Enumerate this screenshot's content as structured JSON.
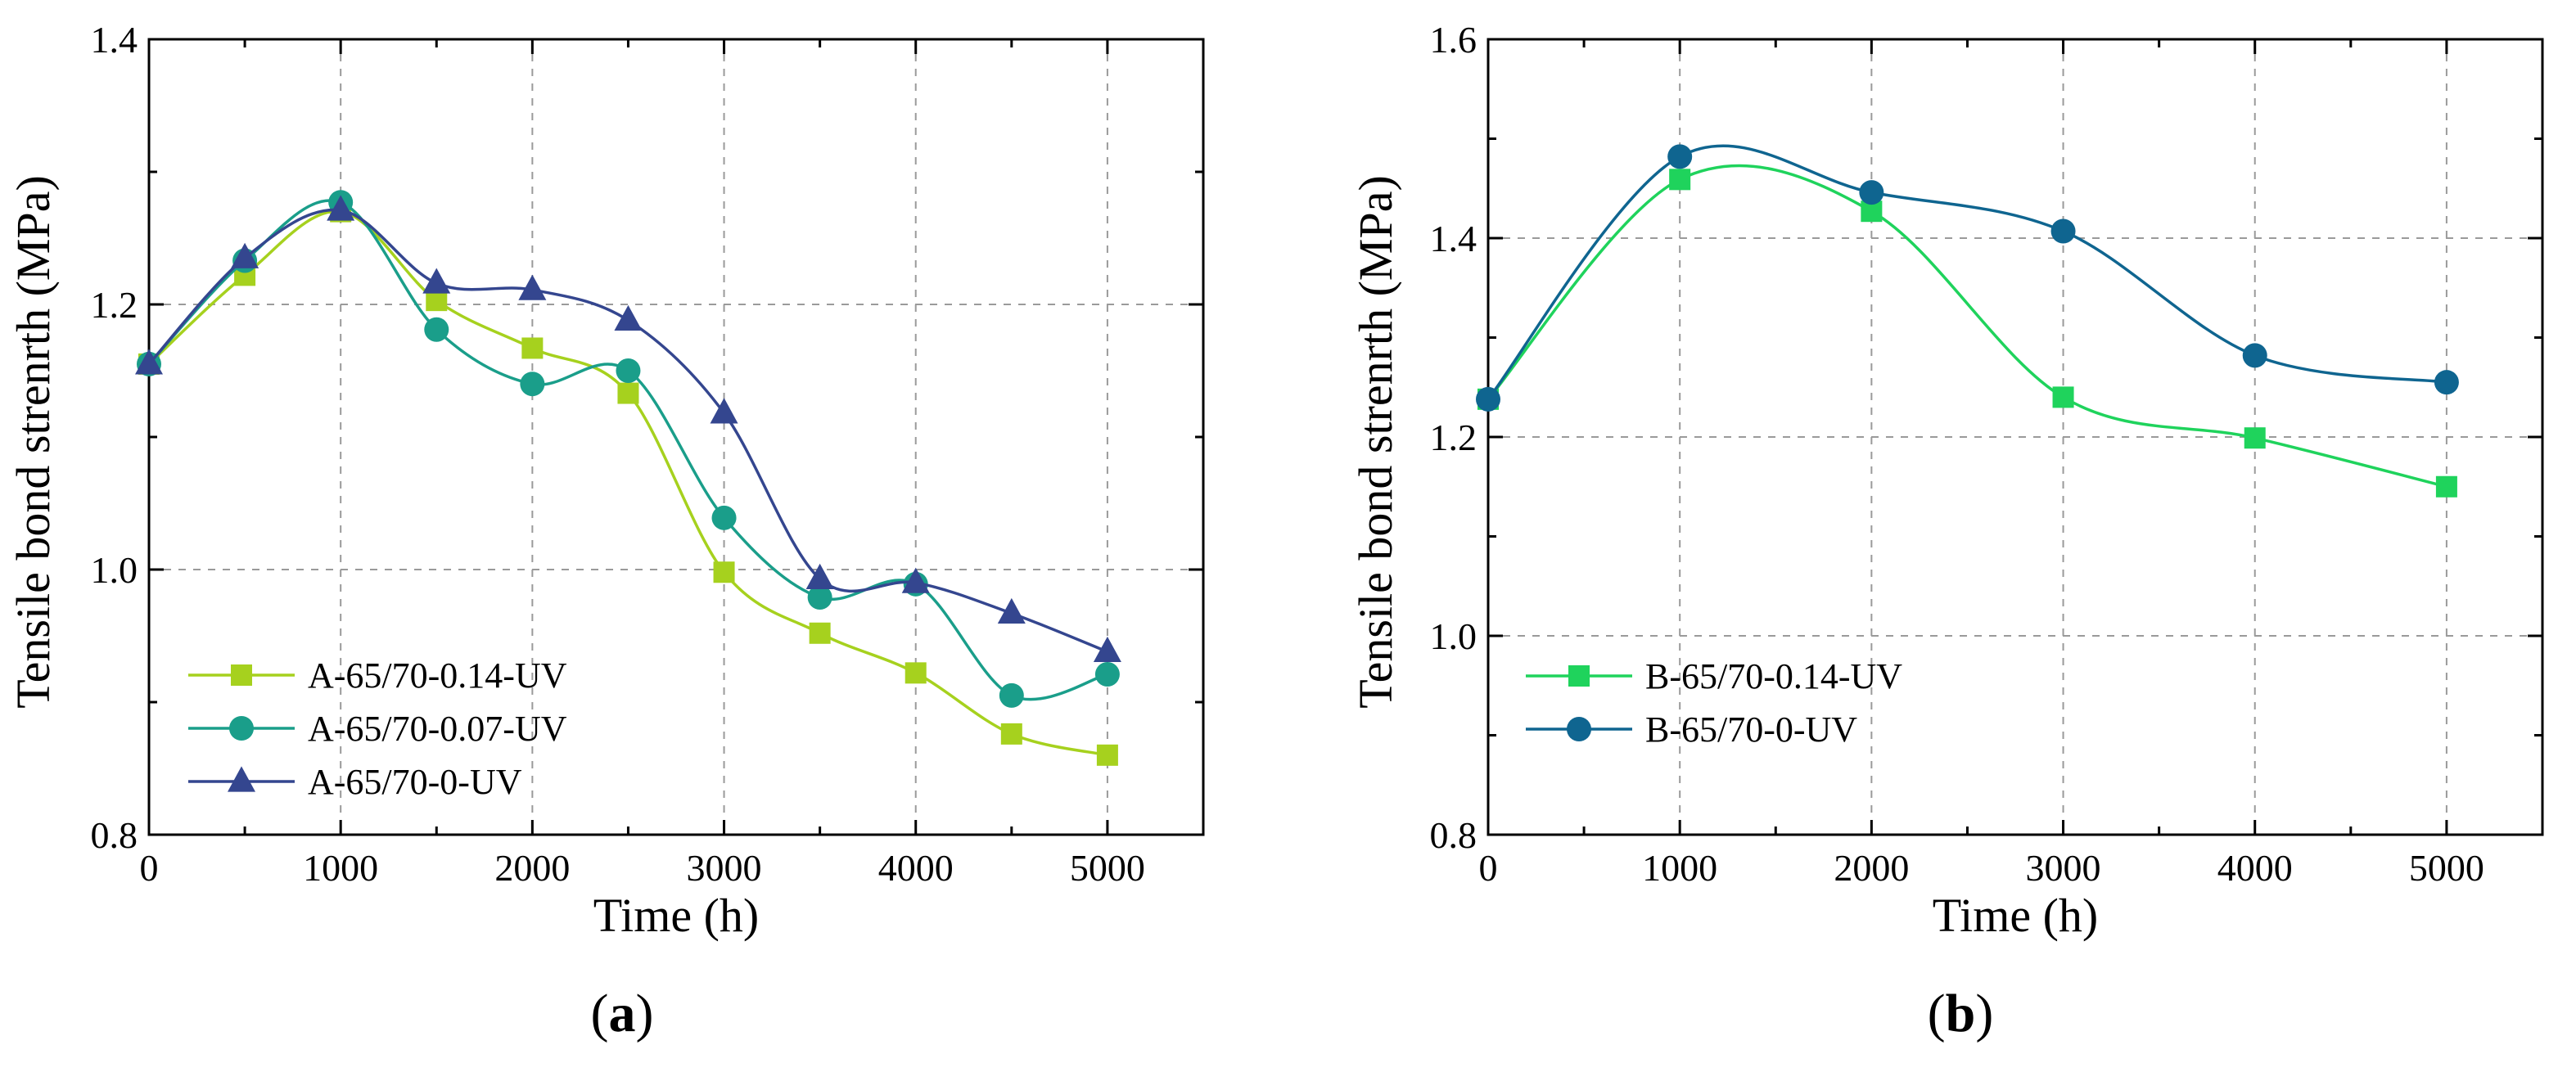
{
  "chart_data": [
    {
      "panel": "a",
      "panel_label": "a",
      "type": "line",
      "title": "",
      "xlabel": "Time (h)",
      "ylabel": "Tensile bond strenrth (MPa)",
      "xlim": [
        0,
        5500
      ],
      "ylim": [
        0.8,
        1.4
      ],
      "x_ticks": [
        0,
        1000,
        2000,
        3000,
        4000,
        5000
      ],
      "x_tick_labels": [
        "0",
        "1000",
        "2000",
        "3000",
        "4000",
        "5000"
      ],
      "y_ticks": [
        0.8,
        1.0,
        1.2,
        1.4
      ],
      "y_tick_labels": [
        "0.8",
        "1.0",
        "1.2",
        "1.4"
      ],
      "grid": true,
      "legend_position": "bottom-left",
      "series": [
        {
          "name": "A-65/70-0.14-UV",
          "color": "#A6D11E",
          "marker": "square",
          "x": [
            0,
            500,
            1000,
            1500,
            2000,
            2500,
            3000,
            3500,
            4000,
            4500,
            5000
          ],
          "values": [
            1.155,
            1.222,
            1.27,
            1.203,
            1.167,
            1.133,
            0.998,
            0.952,
            0.922,
            0.876,
            0.86
          ]
        },
        {
          "name": "A-65/70-0.07-UV",
          "color": "#1A9E8A",
          "marker": "circle",
          "x": [
            0,
            500,
            1000,
            1500,
            2000,
            2500,
            3000,
            3500,
            4000,
            4500,
            5000
          ],
          "values": [
            1.155,
            1.233,
            1.277,
            1.181,
            1.14,
            1.15,
            1.039,
            0.979,
            0.989,
            0.905,
            0.921
          ]
        },
        {
          "name": "A-65/70-0-UV",
          "color": "#34468F",
          "marker": "triangle",
          "x": [
            0,
            500,
            1000,
            1500,
            2000,
            2500,
            3000,
            3500,
            4000,
            4500,
            5000
          ],
          "values": [
            1.155,
            1.235,
            1.271,
            1.216,
            1.211,
            1.188,
            1.118,
            0.993,
            0.99,
            0.967,
            0.938
          ]
        }
      ]
    },
    {
      "panel": "b",
      "panel_label": "b",
      "type": "line",
      "title": "",
      "xlabel": "Time (h)",
      "ylabel": "Tensile bond strenrth (MPa)",
      "xlim": [
        0,
        5500
      ],
      "ylim": [
        0.8,
        1.6
      ],
      "x_ticks": [
        0,
        1000,
        2000,
        3000,
        4000,
        5000
      ],
      "x_tick_labels": [
        "0",
        "1000",
        "2000",
        "3000",
        "4000",
        "5000"
      ],
      "y_ticks": [
        0.8,
        1.0,
        1.2,
        1.4,
        1.6
      ],
      "y_tick_labels": [
        "0.8",
        "1.0",
        "1.2",
        "1.4",
        "1.6"
      ],
      "grid": true,
      "legend_position": "middle-left",
      "series": [
        {
          "name": "B-65/70-0.14-UV",
          "color": "#1FD35C",
          "marker": "square",
          "x": [
            0,
            1000,
            2000,
            3000,
            4000,
            5000
          ],
          "values": [
            1.238,
            1.459,
            1.427,
            1.24,
            1.199,
            1.15
          ]
        },
        {
          "name": "B-65/70-0-UV",
          "color": "#0F6590",
          "marker": "circle",
          "x": [
            0,
            1000,
            2000,
            3000,
            4000,
            5000
          ],
          "values": [
            1.238,
            1.482,
            1.446,
            1.407,
            1.282,
            1.255
          ]
        }
      ]
    }
  ]
}
